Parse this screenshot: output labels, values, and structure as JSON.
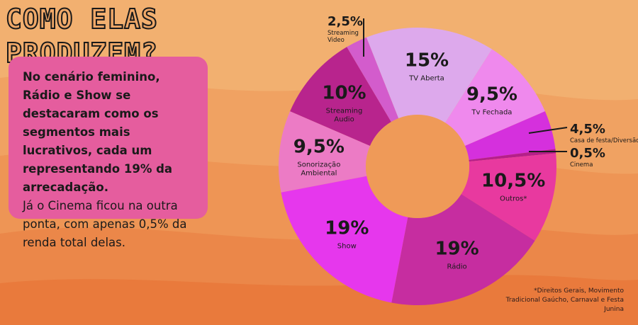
{
  "title": {
    "line1": "COMO ELAS",
    "line2": "PRODUZEM?"
  },
  "summary": {
    "highlight": "No cenário feminino, Rádio e Show se destacaram como os segmentos mais lucrativos, cada um representando 19% da arrecadação.",
    "body": "Já o Cinema ficou na outra ponta, com apenas 0,5% da renda total delas."
  },
  "footnote": "*Direitos Gerais, Movimento Tradicional Gaúcho, Carnaval e Festa Junina",
  "colors": {
    "background": "#f0a868",
    "band_light": "#f2b070",
    "band_mid": "#ee9555",
    "band_dark": "#e97a3c",
    "card": "#e55d9e"
  },
  "chart_data": {
    "type": "pie",
    "donut": true,
    "unit": "%",
    "slices": [
      {
        "name": "TV Aberta",
        "value": 15,
        "label": "15%",
        "color": "#dda9ec"
      },
      {
        "name": "Tv Fechada",
        "value": 9.5,
        "label": "9,5%",
        "color": "#ef89ed"
      },
      {
        "name": "Casa de festa/Diversão",
        "value": 4.5,
        "label": "4,5%",
        "color": "#d530dd"
      },
      {
        "name": "Cinema",
        "value": 0.5,
        "label": "0,5%",
        "color": "#b51f8a"
      },
      {
        "name": "Outros*",
        "value": 10.5,
        "label": "10,5%",
        "color": "#e8399f"
      },
      {
        "name": "Rádio",
        "value": 19,
        "label": "19%",
        "color": "#c62da0"
      },
      {
        "name": "Show",
        "value": 19,
        "label": "19%",
        "color": "#e637ed"
      },
      {
        "name": "Sonorização Ambiental",
        "value": 9.5,
        "label": "9,5%",
        "color": "#ec7bc5"
      },
      {
        "name": "Streaming Audio",
        "value": 10,
        "label": "10%",
        "color": "#b8248d"
      },
      {
        "name": "Streaming Video",
        "value": 2.5,
        "label": "2,5%",
        "color": "#d35ccc"
      }
    ]
  }
}
